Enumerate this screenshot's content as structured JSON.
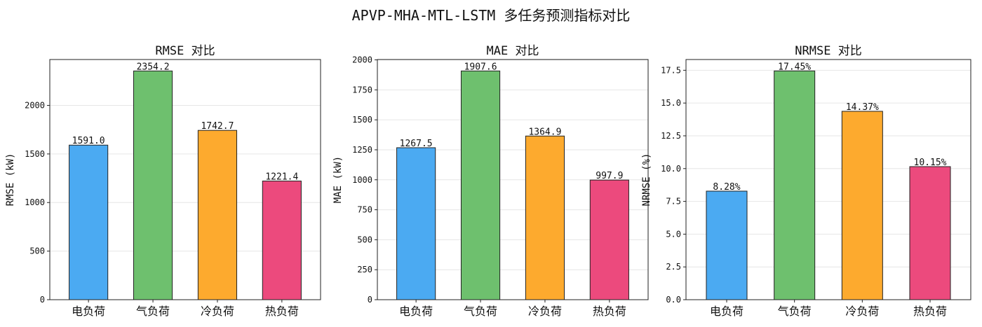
{
  "figure": {
    "title": "APVP-MHA-MTL-LSTM 多任务预测指标对比"
  },
  "chart_data": [
    {
      "type": "bar",
      "title": "RMSE 对比",
      "xlabel": "",
      "ylabel": "RMSE (kW)",
      "categories": [
        "电负荷",
        "气负荷",
        "冷负荷",
        "热负荷"
      ],
      "values": [
        1591.0,
        2354.2,
        1742.7,
        1221.4
      ],
      "value_labels": [
        "1591.0",
        "2354.2",
        "1742.7",
        "1221.4"
      ],
      "colors": [
        "#4BAAF2",
        "#6EC06E",
        "#FDAA2E",
        "#EC4A7D"
      ],
      "ylim": [
        0,
        2472
      ],
      "yticks": [
        0,
        500,
        1000,
        1500,
        2000
      ],
      "ytick_labels": [
        "0",
        "500",
        "1000",
        "1500",
        "2000"
      ],
      "grid": "y"
    },
    {
      "type": "bar",
      "title": "MAE 对比",
      "xlabel": "",
      "ylabel": "MAE (kW)",
      "categories": [
        "电负荷",
        "气负荷",
        "冷负荷",
        "热负荷"
      ],
      "values": [
        1267.5,
        1907.6,
        1364.9,
        997.9
      ],
      "value_labels": [
        "1267.5",
        "1907.6",
        "1364.9",
        "997.9"
      ],
      "colors": [
        "#4BAAF2",
        "#6EC06E",
        "#FDAA2E",
        "#EC4A7D"
      ],
      "ylim": [
        0,
        2003
      ],
      "yticks": [
        0,
        250,
        500,
        750,
        1000,
        1250,
        1500,
        1750,
        2000
      ],
      "ytick_labels": [
        "0",
        "250",
        "500",
        "750",
        "1000",
        "1250",
        "1500",
        "1750",
        "2000"
      ],
      "grid": "y"
    },
    {
      "type": "bar",
      "title": "NRMSE 对比",
      "xlabel": "",
      "ylabel": "NRMSE (%)",
      "categories": [
        "电负荷",
        "气负荷",
        "冷负荷",
        "热负荷"
      ],
      "values": [
        8.28,
        17.45,
        14.37,
        10.15
      ],
      "value_labels": [
        "8.28%",
        "17.45%",
        "14.37%",
        "10.15%"
      ],
      "colors": [
        "#4BAAF2",
        "#6EC06E",
        "#FDAA2E",
        "#EC4A7D"
      ],
      "ylim": [
        0,
        18.32
      ],
      "yticks": [
        0,
        2.5,
        5,
        7.5,
        10,
        12.5,
        15,
        17.5
      ],
      "ytick_labels": [
        "0.0",
        "2.5",
        "5.0",
        "7.5",
        "10.0",
        "12.5",
        "15.0",
        "17.5"
      ],
      "grid": "y"
    }
  ]
}
